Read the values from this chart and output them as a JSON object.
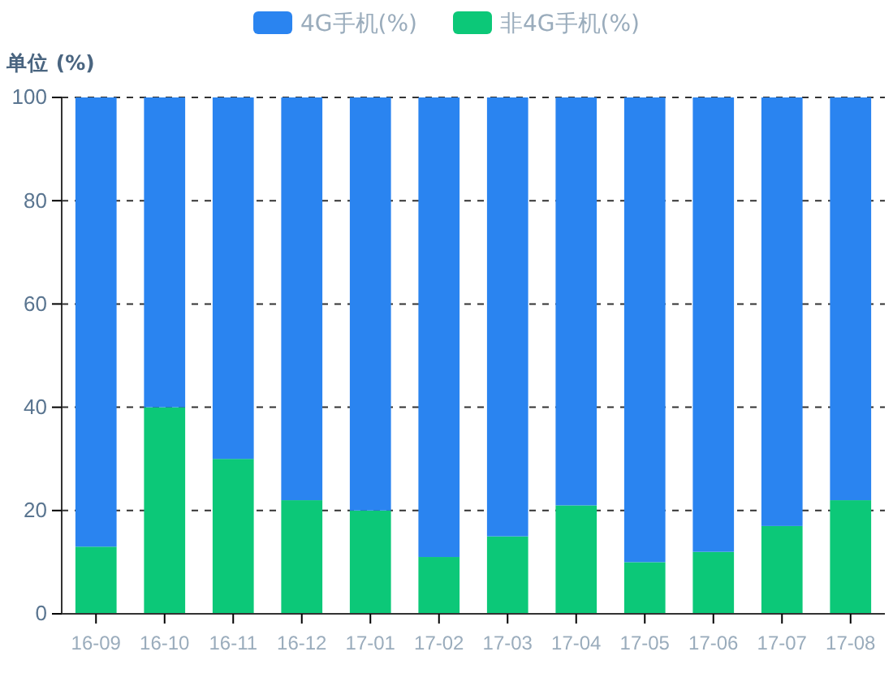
{
  "chart_data": {
    "type": "bar",
    "stacked": true,
    "ylabel": "单位 (%)",
    "categories": [
      "16-09",
      "16-10",
      "16-11",
      "16-12",
      "17-01",
      "17-02",
      "17-03",
      "17-04",
      "17-05",
      "17-06",
      "17-07",
      "17-08"
    ],
    "series": [
      {
        "name": "非4G手机(%)",
        "color": "#0cc878",
        "values": [
          13,
          40,
          30,
          22,
          20,
          11,
          15,
          21,
          10,
          12,
          17,
          22
        ]
      },
      {
        "name": "4G手机(%)",
        "color": "#2a84f0",
        "values": [
          87,
          60,
          70,
          78,
          80,
          89,
          85,
          79,
          90,
          88,
          83,
          78
        ]
      }
    ],
    "ylim": [
      0,
      100
    ],
    "yticks": [
      0,
      20,
      40,
      60,
      80,
      100
    ],
    "grid": "y",
    "legend": "top"
  }
}
